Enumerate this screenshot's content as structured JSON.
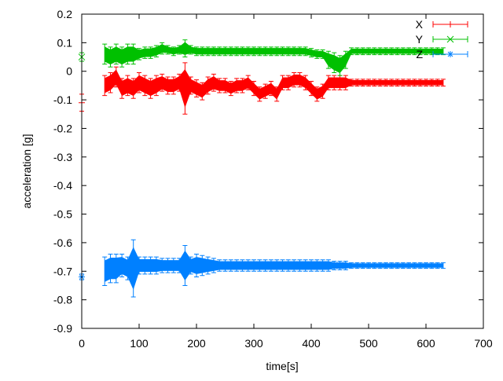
{
  "chart_data": {
    "type": "line",
    "title": "",
    "xlabel": "time[s]",
    "ylabel": "acceleration [g]",
    "xlim": [
      0,
      700
    ],
    "ylim": [
      -0.9,
      0.2
    ],
    "x_ticks": [
      "0",
      "100",
      "200",
      "300",
      "400",
      "500",
      "600",
      "700"
    ],
    "y_ticks": [
      "0.2",
      "0.1",
      "0",
      "-0.1",
      "-0.2",
      "-0.3",
      "-0.4",
      "-0.5",
      "-0.6",
      "-0.7",
      "-0.8",
      "-0.9"
    ],
    "grid": false,
    "legend_position": "top-right",
    "error_bars": true,
    "t": [
      0,
      40,
      50,
      60,
      70,
      80,
      90,
      100,
      110,
      120,
      130,
      140,
      150,
      160,
      170,
      180,
      190,
      200,
      210,
      220,
      230,
      240,
      250,
      260,
      270,
      280,
      290,
      300,
      310,
      320,
      330,
      340,
      350,
      360,
      370,
      380,
      390,
      400,
      410,
      420,
      430,
      440,
      450,
      460,
      470,
      480,
      490,
      500,
      510,
      520,
      530,
      540,
      550,
      560,
      570,
      580,
      590,
      600,
      610,
      620,
      630
    ],
    "series": [
      {
        "name": "X",
        "color": "#ff0000",
        "marker": "plus",
        "values": [
          -0.11,
          -0.05,
          -0.04,
          -0.02,
          -0.06,
          -0.05,
          -0.06,
          -0.04,
          -0.05,
          -0.06,
          -0.05,
          -0.04,
          -0.05,
          -0.05,
          -0.04,
          -0.06,
          -0.05,
          -0.06,
          -0.07,
          -0.05,
          -0.04,
          -0.05,
          -0.05,
          -0.06,
          -0.05,
          -0.05,
          -0.04,
          -0.06,
          -0.08,
          -0.07,
          -0.06,
          -0.08,
          -0.04,
          -0.04,
          -0.03,
          -0.03,
          -0.04,
          -0.06,
          -0.08,
          -0.07,
          -0.04,
          -0.04,
          -0.04,
          -0.04,
          -0.04,
          -0.04,
          -0.04,
          -0.04,
          -0.04,
          -0.04,
          -0.04,
          -0.04,
          -0.04,
          -0.04,
          -0.04,
          -0.04,
          -0.04,
          -0.04,
          -0.04,
          -0.04,
          -0.04
        ],
        "errors": [
          0.03,
          0.035,
          0.035,
          0.035,
          0.035,
          0.035,
          0.035,
          0.035,
          0.035,
          0.035,
          0.035,
          0.03,
          0.03,
          0.03,
          0.03,
          0.09,
          0.03,
          0.03,
          0.03,
          0.03,
          0.03,
          0.025,
          0.025,
          0.025,
          0.025,
          0.025,
          0.025,
          0.025,
          0.025,
          0.025,
          0.025,
          0.025,
          0.025,
          0.025,
          0.025,
          0.025,
          0.025,
          0.025,
          0.025,
          0.025,
          0.025,
          0.025,
          0.025,
          0.025,
          0.012,
          0.012,
          0.012,
          0.012,
          0.012,
          0.012,
          0.012,
          0.012,
          0.012,
          0.012,
          0.012,
          0.012,
          0.012,
          0.012,
          0.012,
          0.012,
          0.012
        ]
      },
      {
        "name": "Y",
        "color": "#00c000",
        "marker": "cross",
        "values": [
          0.05,
          0.06,
          0.05,
          0.06,
          0.05,
          0.06,
          0.06,
          0.06,
          0.065,
          0.065,
          0.07,
          0.08,
          0.075,
          0.07,
          0.075,
          0.08,
          0.075,
          0.07,
          0.07,
          0.07,
          0.07,
          0.07,
          0.07,
          0.07,
          0.07,
          0.07,
          0.07,
          0.07,
          0.07,
          0.07,
          0.07,
          0.07,
          0.07,
          0.07,
          0.07,
          0.07,
          0.07,
          0.065,
          0.06,
          0.06,
          0.04,
          0.03,
          0.02,
          0.04,
          0.07,
          0.07,
          0.07,
          0.07,
          0.07,
          0.07,
          0.07,
          0.07,
          0.07,
          0.07,
          0.07,
          0.07,
          0.07,
          0.07,
          0.07,
          0.07,
          0.07
        ],
        "errors": [
          0.015,
          0.035,
          0.035,
          0.035,
          0.035,
          0.035,
          0.035,
          0.02,
          0.02,
          0.02,
          0.02,
          0.02,
          0.015,
          0.015,
          0.015,
          0.03,
          0.015,
          0.015,
          0.015,
          0.015,
          0.015,
          0.015,
          0.015,
          0.015,
          0.015,
          0.015,
          0.015,
          0.015,
          0.015,
          0.015,
          0.015,
          0.015,
          0.015,
          0.015,
          0.015,
          0.015,
          0.015,
          0.015,
          0.015,
          0.015,
          0.03,
          0.035,
          0.035,
          0.03,
          0.012,
          0.012,
          0.012,
          0.012,
          0.012,
          0.012,
          0.012,
          0.012,
          0.012,
          0.012,
          0.012,
          0.012,
          0.012,
          0.012,
          0.012,
          0.012,
          0.012
        ]
      },
      {
        "name": "Z",
        "color": "#0080ff",
        "marker": "star",
        "values": [
          -0.72,
          -0.7,
          -0.69,
          -0.69,
          -0.68,
          -0.69,
          -0.69,
          -0.68,
          -0.68,
          -0.68,
          -0.68,
          -0.68,
          -0.68,
          -0.68,
          -0.68,
          -0.68,
          -0.68,
          -0.68,
          -0.68,
          -0.68,
          -0.68,
          -0.68,
          -0.68,
          -0.68,
          -0.68,
          -0.68,
          -0.68,
          -0.68,
          -0.68,
          -0.68,
          -0.68,
          -0.68,
          -0.68,
          -0.68,
          -0.68,
          -0.68,
          -0.68,
          -0.68,
          -0.68,
          -0.68,
          -0.68,
          -0.68,
          -0.68,
          -0.68,
          -0.68,
          -0.68,
          -0.68,
          -0.68,
          -0.68,
          -0.68,
          -0.68,
          -0.68,
          -0.68,
          -0.68,
          -0.68,
          -0.68,
          -0.68,
          -0.68,
          -0.68,
          -0.68,
          -0.68
        ],
        "errors": [
          0.01,
          0.05,
          0.05,
          0.05,
          0.04,
          0.04,
          0.1,
          0.03,
          0.03,
          0.03,
          0.03,
          0.025,
          0.025,
          0.025,
          0.025,
          0.07,
          0.03,
          0.04,
          0.035,
          0.03,
          0.025,
          0.02,
          0.02,
          0.02,
          0.02,
          0.02,
          0.02,
          0.02,
          0.02,
          0.02,
          0.02,
          0.02,
          0.02,
          0.02,
          0.02,
          0.02,
          0.02,
          0.02,
          0.02,
          0.02,
          0.02,
          0.015,
          0.015,
          0.015,
          0.01,
          0.01,
          0.01,
          0.01,
          0.01,
          0.01,
          0.01,
          0.01,
          0.01,
          0.01,
          0.01,
          0.01,
          0.01,
          0.01,
          0.01,
          0.01,
          0.01
        ]
      }
    ]
  }
}
